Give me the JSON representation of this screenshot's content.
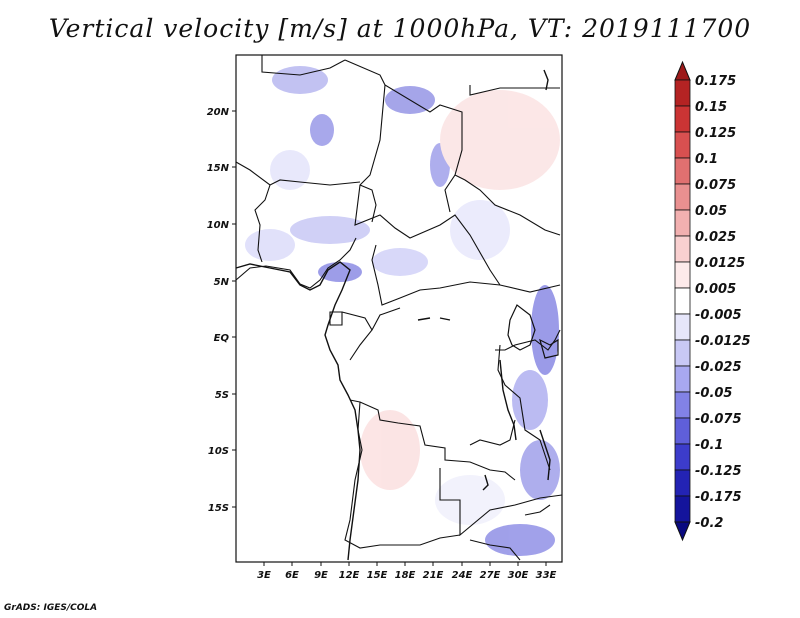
{
  "title": "Vertical velocity [m/s] at 1000hPa, VT: 2019111700",
  "credit": "GrADS: IGES/COLA",
  "map": {
    "lat_ticks": [
      "20N",
      "15N",
      "10N",
      "5N",
      "EQ",
      "5S",
      "10S",
      "15S"
    ],
    "lon_ticks": [
      "3E",
      "6E",
      "9E",
      "12E",
      "15E",
      "18E",
      "21E",
      "24E",
      "27E",
      "30E",
      "33E"
    ]
  },
  "colorbar": {
    "labels": [
      "0.175",
      "0.15",
      "0.125",
      "0.1",
      "0.075",
      "0.05",
      "0.025",
      "0.0125",
      "0.005",
      "-0.005",
      "-0.0125",
      "-0.025",
      "-0.05",
      "-0.075",
      "-0.1",
      "-0.125",
      "-0.175",
      "-0.2"
    ],
    "colors": [
      "#9d1a1a",
      "#b42323",
      "#cb3434",
      "#d85050",
      "#e07070",
      "#e99090",
      "#f2b0b0",
      "#f9d0d0",
      "#fdeaea",
      "#ffffff",
      "#e6e6fa",
      "#c8c8f5",
      "#a8a8f0",
      "#8282e6",
      "#5f5fda",
      "#3c3ccb",
      "#2323b4",
      "#14149c",
      "#0a0a80"
    ]
  }
}
